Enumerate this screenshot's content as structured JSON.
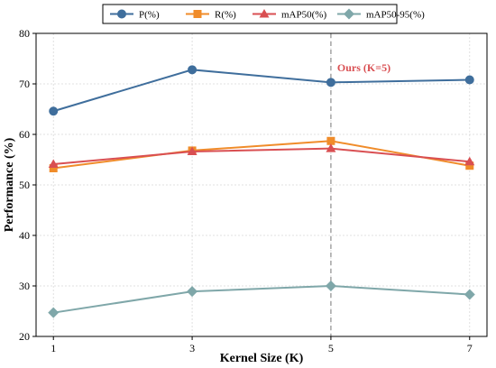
{
  "chart_data": {
    "type": "line",
    "x": [
      1,
      3,
      5,
      7
    ],
    "xlabel": "Kernel Size (K)",
    "ylabel": "Performance (%)",
    "xlim": [
      0.75,
      7.25
    ],
    "ylim": [
      20,
      80
    ],
    "yticks": [
      20,
      30,
      40,
      50,
      60,
      70,
      80
    ],
    "xticks": [
      1,
      3,
      5,
      7
    ],
    "grid": true,
    "legend_position": "top-center",
    "series": [
      {
        "name": "P(%)",
        "values": [
          64.6,
          72.8,
          70.3,
          70.8
        ],
        "color": "#3f6e9c",
        "marker": "circle"
      },
      {
        "name": "R(%)",
        "values": [
          53.3,
          56.8,
          58.7,
          53.8
        ],
        "color": "#f08c2a",
        "marker": "square"
      },
      {
        "name": "mAP50(%)",
        "values": [
          54.1,
          56.6,
          57.2,
          54.6
        ],
        "color": "#d94f52",
        "marker": "triangle"
      },
      {
        "name": "mAP50-95(%)",
        "values": [
          24.7,
          28.9,
          30.0,
          28.3
        ],
        "color": "#7fa7a9",
        "marker": "diamond"
      }
    ],
    "annotations": [
      {
        "text": "Ours (K=5)",
        "x": 5,
        "color": "#d94f52",
        "style": "dashed-vertical-line"
      }
    ]
  }
}
